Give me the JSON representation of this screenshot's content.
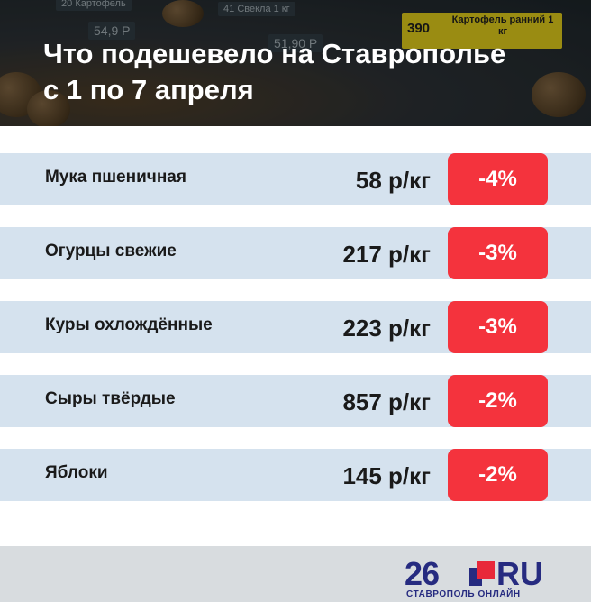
{
  "header": {
    "title_line1": "Что подешевело на Ставрополье",
    "title_line2": "с 1 по 7 апреля",
    "bg_tags": [
      {
        "num": "20",
        "label": "Картофель"
      },
      {
        "num": "41",
        "label": "Свекла 1 кг"
      },
      {
        "price": "54,9 Р"
      },
      {
        "price": "51,90 Р"
      }
    ],
    "yellow_tag": {
      "num": "390",
      "label": "Картофель ранний 1 кг"
    }
  },
  "rows": [
    {
      "name": "Мука пшеничная",
      "price": "58 р/кг",
      "change": "-4%"
    },
    {
      "name": "Огурцы свежие",
      "price": "217 р/кг",
      "change": "-3%"
    },
    {
      "name": "Куры охлождённые",
      "price": "223 р/кг",
      "change": "-3%"
    },
    {
      "name": "Сыры твёрдые",
      "price": "857 р/кг",
      "change": "-2%"
    },
    {
      "name": "Яблоки",
      "price": "145 р/кг",
      "change": "-2%"
    }
  ],
  "footer": {
    "logo_number": "26",
    "logo_domain": "RU",
    "logo_subtitle": "СТАВРОПОЛЬ ОНЛАЙН"
  },
  "colors": {
    "row_bg": "#d5e2ee",
    "badge_red": "#f4333d",
    "logo_blue": "#262b80",
    "logo_red": "#e8283a",
    "footer_bg": "#d8dcdf"
  }
}
